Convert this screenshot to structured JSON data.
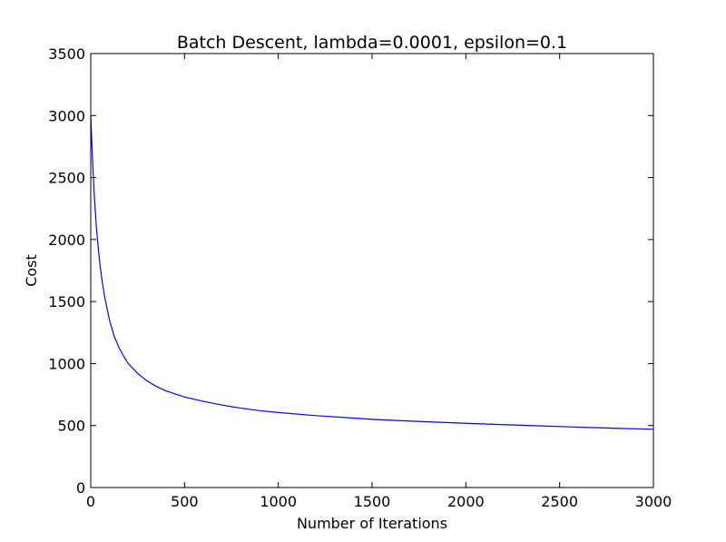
{
  "chart_data": {
    "type": "line",
    "title": "Batch Descent, lambda=0.0001, epsilon=0.1",
    "xlabel": "Number of Iterations",
    "ylabel": "Cost",
    "xlim": [
      0,
      3000
    ],
    "ylim": [
      0,
      3500
    ],
    "xticks": [
      "0",
      "500",
      "1000",
      "1500",
      "2000",
      "2500",
      "3000"
    ],
    "yticks": [
      "0",
      "500",
      "1000",
      "1500",
      "2000",
      "2500",
      "3000",
      "3500"
    ],
    "grid": false,
    "legend": "none",
    "series": [
      {
        "color": "#0000ff",
        "x": [
          0,
          10,
          20,
          30,
          40,
          50,
          60,
          75,
          100,
          125,
          150,
          175,
          200,
          250,
          300,
          350,
          400,
          500,
          600,
          700,
          800,
          900,
          1000,
          1200,
          1400,
          1500,
          1600,
          1800,
          2000,
          2200,
          2400,
          2500,
          2600,
          2800,
          3000
        ],
        "y": [
          3000,
          2620,
          2330,
          2100,
          1930,
          1790,
          1670,
          1530,
          1350,
          1220,
          1130,
          1060,
          1000,
          920,
          860,
          815,
          780,
          730,
          695,
          665,
          640,
          620,
          605,
          580,
          560,
          550,
          543,
          530,
          518,
          507,
          497,
          492,
          487,
          478,
          470
        ]
      }
    ]
  }
}
